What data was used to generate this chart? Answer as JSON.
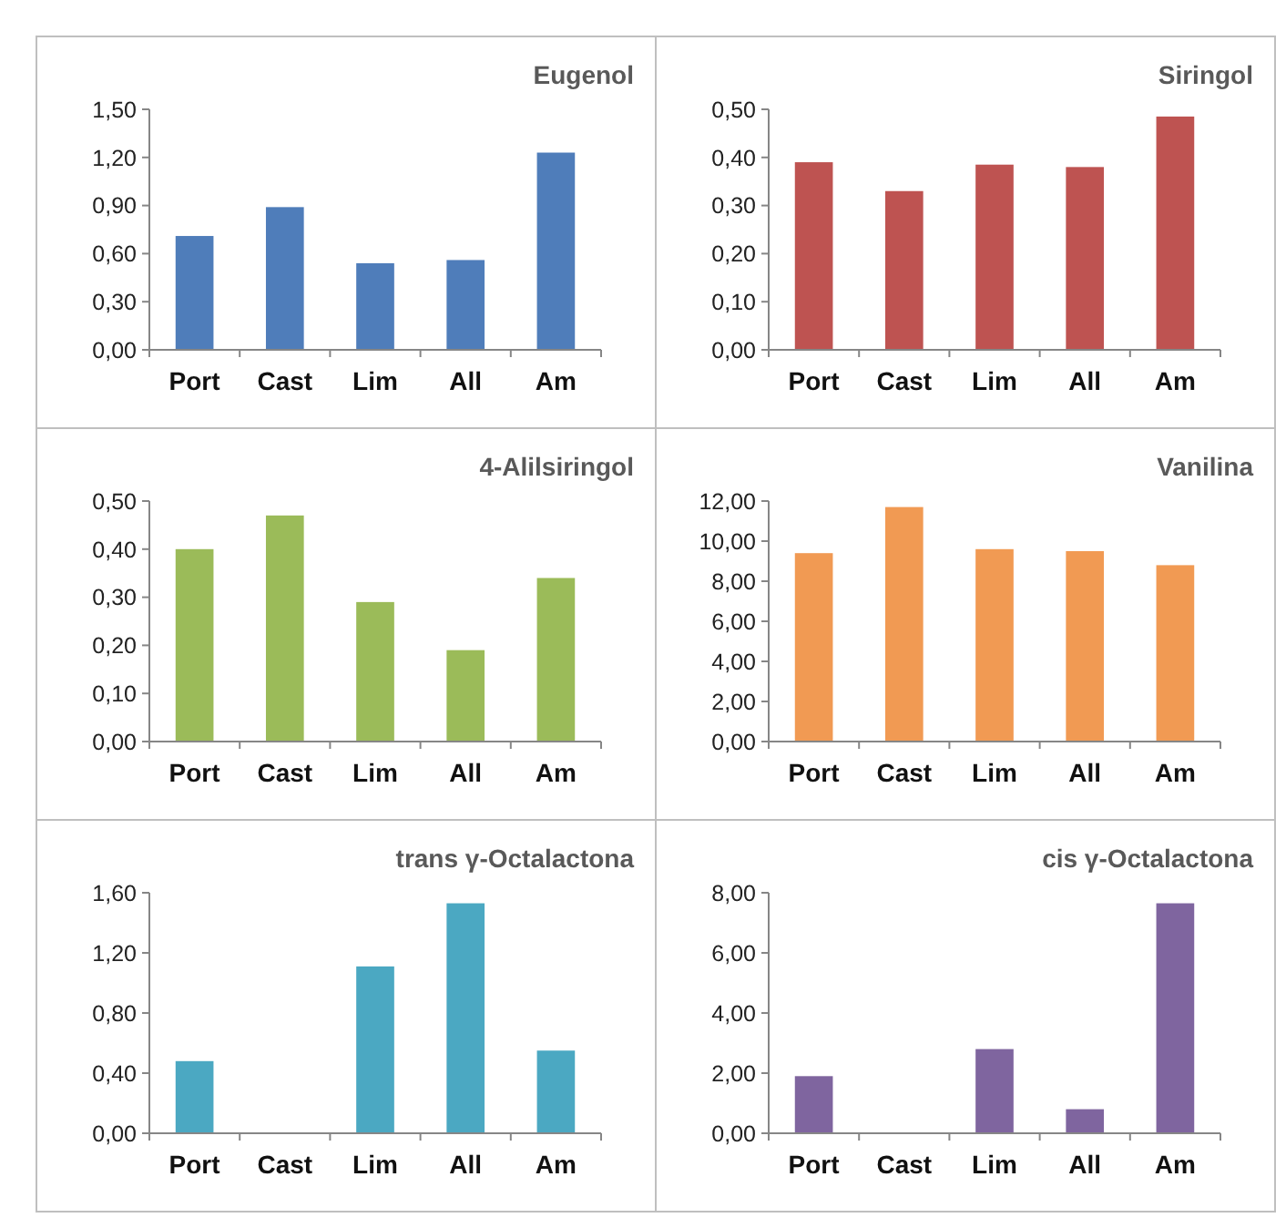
{
  "chart_data": [
    {
      "type": "bar",
      "title": "Eugenol",
      "categories": [
        "Port",
        "Cast",
        "Lim",
        "All",
        "Am"
      ],
      "values": [
        0.71,
        0.89,
        0.54,
        0.56,
        1.23
      ],
      "color": "#4f7dba",
      "ylim": [
        0,
        1.5
      ],
      "yticks": [
        {
          "value": 0,
          "label": "0,00"
        },
        {
          "value": 0.3,
          "label": "0,30"
        },
        {
          "value": 0.6,
          "label": "0,60"
        },
        {
          "value": 0.9,
          "label": "0,90"
        },
        {
          "value": 1.2,
          "label": "1,20"
        },
        {
          "value": 1.5,
          "label": "1,50"
        }
      ]
    },
    {
      "type": "bar",
      "title": "Siringol",
      "categories": [
        "Port",
        "Cast",
        "Lim",
        "All",
        "Am"
      ],
      "values": [
        0.39,
        0.33,
        0.385,
        0.38,
        0.485
      ],
      "color": "#be5351",
      "ylim": [
        0,
        0.5
      ],
      "yticks": [
        {
          "value": 0,
          "label": "0,00"
        },
        {
          "value": 0.1,
          "label": "0,10"
        },
        {
          "value": 0.2,
          "label": "0,20"
        },
        {
          "value": 0.3,
          "label": "0,30"
        },
        {
          "value": 0.4,
          "label": "0,40"
        },
        {
          "value": 0.5,
          "label": "0,50"
        }
      ]
    },
    {
      "type": "bar",
      "title": "4-Alilsiringol",
      "categories": [
        "Port",
        "Cast",
        "Lim",
        "All",
        "Am"
      ],
      "values": [
        0.4,
        0.47,
        0.29,
        0.19,
        0.34
      ],
      "color": "#9bbb59",
      "ylim": [
        0,
        0.5
      ],
      "yticks": [
        {
          "value": 0,
          "label": "0,00"
        },
        {
          "value": 0.1,
          "label": "0,10"
        },
        {
          "value": 0.2,
          "label": "0,20"
        },
        {
          "value": 0.3,
          "label": "0,30"
        },
        {
          "value": 0.4,
          "label": "0,40"
        },
        {
          "value": 0.5,
          "label": "0,50"
        }
      ]
    },
    {
      "type": "bar",
      "title": "Vanilina",
      "categories": [
        "Port",
        "Cast",
        "Lim",
        "All",
        "Am"
      ],
      "values": [
        9.4,
        11.7,
        9.6,
        9.5,
        8.8
      ],
      "color": "#f19a53",
      "ylim": [
        0,
        12
      ],
      "yticks": [
        {
          "value": 0,
          "label": "0,00"
        },
        {
          "value": 2,
          "label": "2,00"
        },
        {
          "value": 4,
          "label": "4,00"
        },
        {
          "value": 6,
          "label": "6,00"
        },
        {
          "value": 8,
          "label": "8,00"
        },
        {
          "value": 10,
          "label": "10,00"
        },
        {
          "value": 12,
          "label": "12,00"
        }
      ]
    },
    {
      "type": "bar",
      "title": "trans γ-Octalactona",
      "categories": [
        "Port",
        "Cast",
        "Lim",
        "All",
        "Am"
      ],
      "values": [
        0.48,
        null,
        1.11,
        1.53,
        0.55
      ],
      "color": "#4ba8c2",
      "ylim": [
        0,
        1.6
      ],
      "yticks": [
        {
          "value": 0,
          "label": "0,00"
        },
        {
          "value": 0.4,
          "label": "0,40"
        },
        {
          "value": 0.8,
          "label": "0,80"
        },
        {
          "value": 1.2,
          "label": "1,20"
        },
        {
          "value": 1.6,
          "label": "1,60"
        }
      ]
    },
    {
      "type": "bar",
      "title": "cis γ-Octalactona",
      "categories": [
        "Port",
        "Cast",
        "Lim",
        "All",
        "Am"
      ],
      "values": [
        1.9,
        null,
        2.8,
        0.8,
        7.65
      ],
      "color": "#7f659f",
      "ylim": [
        0,
        8
      ],
      "yticks": [
        {
          "value": 0,
          "label": "0,00"
        },
        {
          "value": 2,
          "label": "2,00"
        },
        {
          "value": 4,
          "label": "4,00"
        },
        {
          "value": 6,
          "label": "6,00"
        },
        {
          "value": 8,
          "label": "8,00"
        }
      ]
    }
  ]
}
